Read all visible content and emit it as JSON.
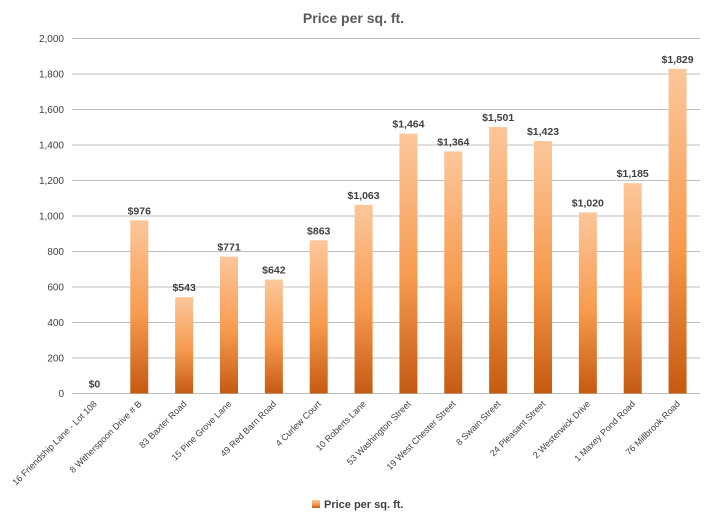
{
  "chart_data": {
    "type": "bar",
    "title": "Price per sq. ft.",
    "categories": [
      "16 Friendship Lane - Lot 108",
      "8 Witherspoon Drive # B",
      "83 Baxter Road",
      "15 Pine Grove Lane",
      "49 Red Barn Road",
      "4 Curlew Court",
      "10 Roberts Lane",
      "53 Washington Street",
      "19 West Chester Street",
      "8 Swain Street",
      "24 Pleasant Street",
      "2 Westerwick Drive",
      "1 Maxey Pond Road",
      "76 Millbrook Road"
    ],
    "series": [
      {
        "name": "Price per sq. ft.",
        "values": [
          0,
          976,
          543,
          771,
          642,
          863,
          1063,
          1464,
          1364,
          1501,
          1423,
          1020,
          1185,
          1829
        ],
        "data_labels": [
          "$0",
          "$976",
          "$543",
          "$771",
          "$642",
          "$863",
          "$1,063",
          "$1,464",
          "$1,364",
          "$1,501",
          "$1,423",
          "$1,020",
          "$1,185",
          "$1,829"
        ]
      }
    ],
    "yticks": [
      "0",
      "200",
      "400",
      "600",
      "800",
      "1,000",
      "1,200",
      "1,400",
      "1,600",
      "1,800",
      "2,000"
    ],
    "ylim": [
      0,
      2000
    ],
    "grid": true,
    "legend": "bottom",
    "colors": {
      "bar_top": "#fcc79b",
      "bar_mid": "#f79a4e",
      "bar_bottom": "#c55a11",
      "gridline": "#bfbfbf",
      "text": "#404040",
      "title": "#595959"
    }
  }
}
